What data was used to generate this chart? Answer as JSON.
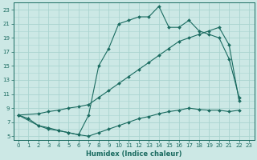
{
  "xlabel": "Humidex (Indice chaleur)",
  "bg_color": "#cce8e5",
  "line_color": "#1a6b60",
  "grid_color": "#aad4d0",
  "xlim": [
    -0.5,
    23.5
  ],
  "ylim": [
    4.5,
    24
  ],
  "xticks": [
    0,
    1,
    2,
    3,
    4,
    5,
    6,
    7,
    8,
    9,
    10,
    11,
    12,
    13,
    14,
    15,
    16,
    17,
    18,
    19,
    20,
    21,
    22,
    23
  ],
  "yticks": [
    5,
    7,
    9,
    11,
    13,
    15,
    17,
    19,
    21,
    23
  ],
  "line1_x": [
    0,
    1,
    2,
    3,
    4,
    5,
    6,
    7,
    8,
    9,
    10,
    11,
    12,
    13,
    14,
    15,
    16,
    17,
    18,
    19,
    20,
    21,
    22
  ],
  "line1_y": [
    8,
    7.5,
    6.5,
    6.2,
    5.8,
    5.5,
    5.2,
    5.0,
    5.5,
    6.0,
    6.5,
    7.0,
    7.5,
    7.8,
    8.2,
    8.5,
    8.7,
    9.0,
    8.8,
    8.7,
    8.7,
    8.5,
    8.7
  ],
  "line2_x": [
    0,
    2,
    3,
    4,
    5,
    6,
    7,
    8,
    9,
    10,
    11,
    12,
    13,
    14,
    15,
    16,
    17,
    18,
    19,
    20,
    21,
    22
  ],
  "line2_y": [
    8,
    8.2,
    8.5,
    8.7,
    9.0,
    9.2,
    9.5,
    10.5,
    11.5,
    12.5,
    13.5,
    14.5,
    15.5,
    16.5,
    17.5,
    18.5,
    19.0,
    19.5,
    20.0,
    20.5,
    18.0,
    10.0
  ],
  "line3_x": [
    0,
    2,
    3,
    4,
    5,
    6,
    7,
    8,
    9,
    10,
    11,
    12,
    13,
    14,
    15,
    16,
    17,
    18,
    19,
    20,
    21,
    22
  ],
  "line3_y": [
    8,
    6.5,
    6.0,
    5.8,
    5.5,
    5.2,
    8.0,
    15.0,
    17.5,
    21.0,
    21.5,
    22.0,
    22.0,
    23.5,
    20.5,
    20.5,
    21.5,
    20.0,
    19.5,
    19.0,
    16.0,
    10.5
  ]
}
